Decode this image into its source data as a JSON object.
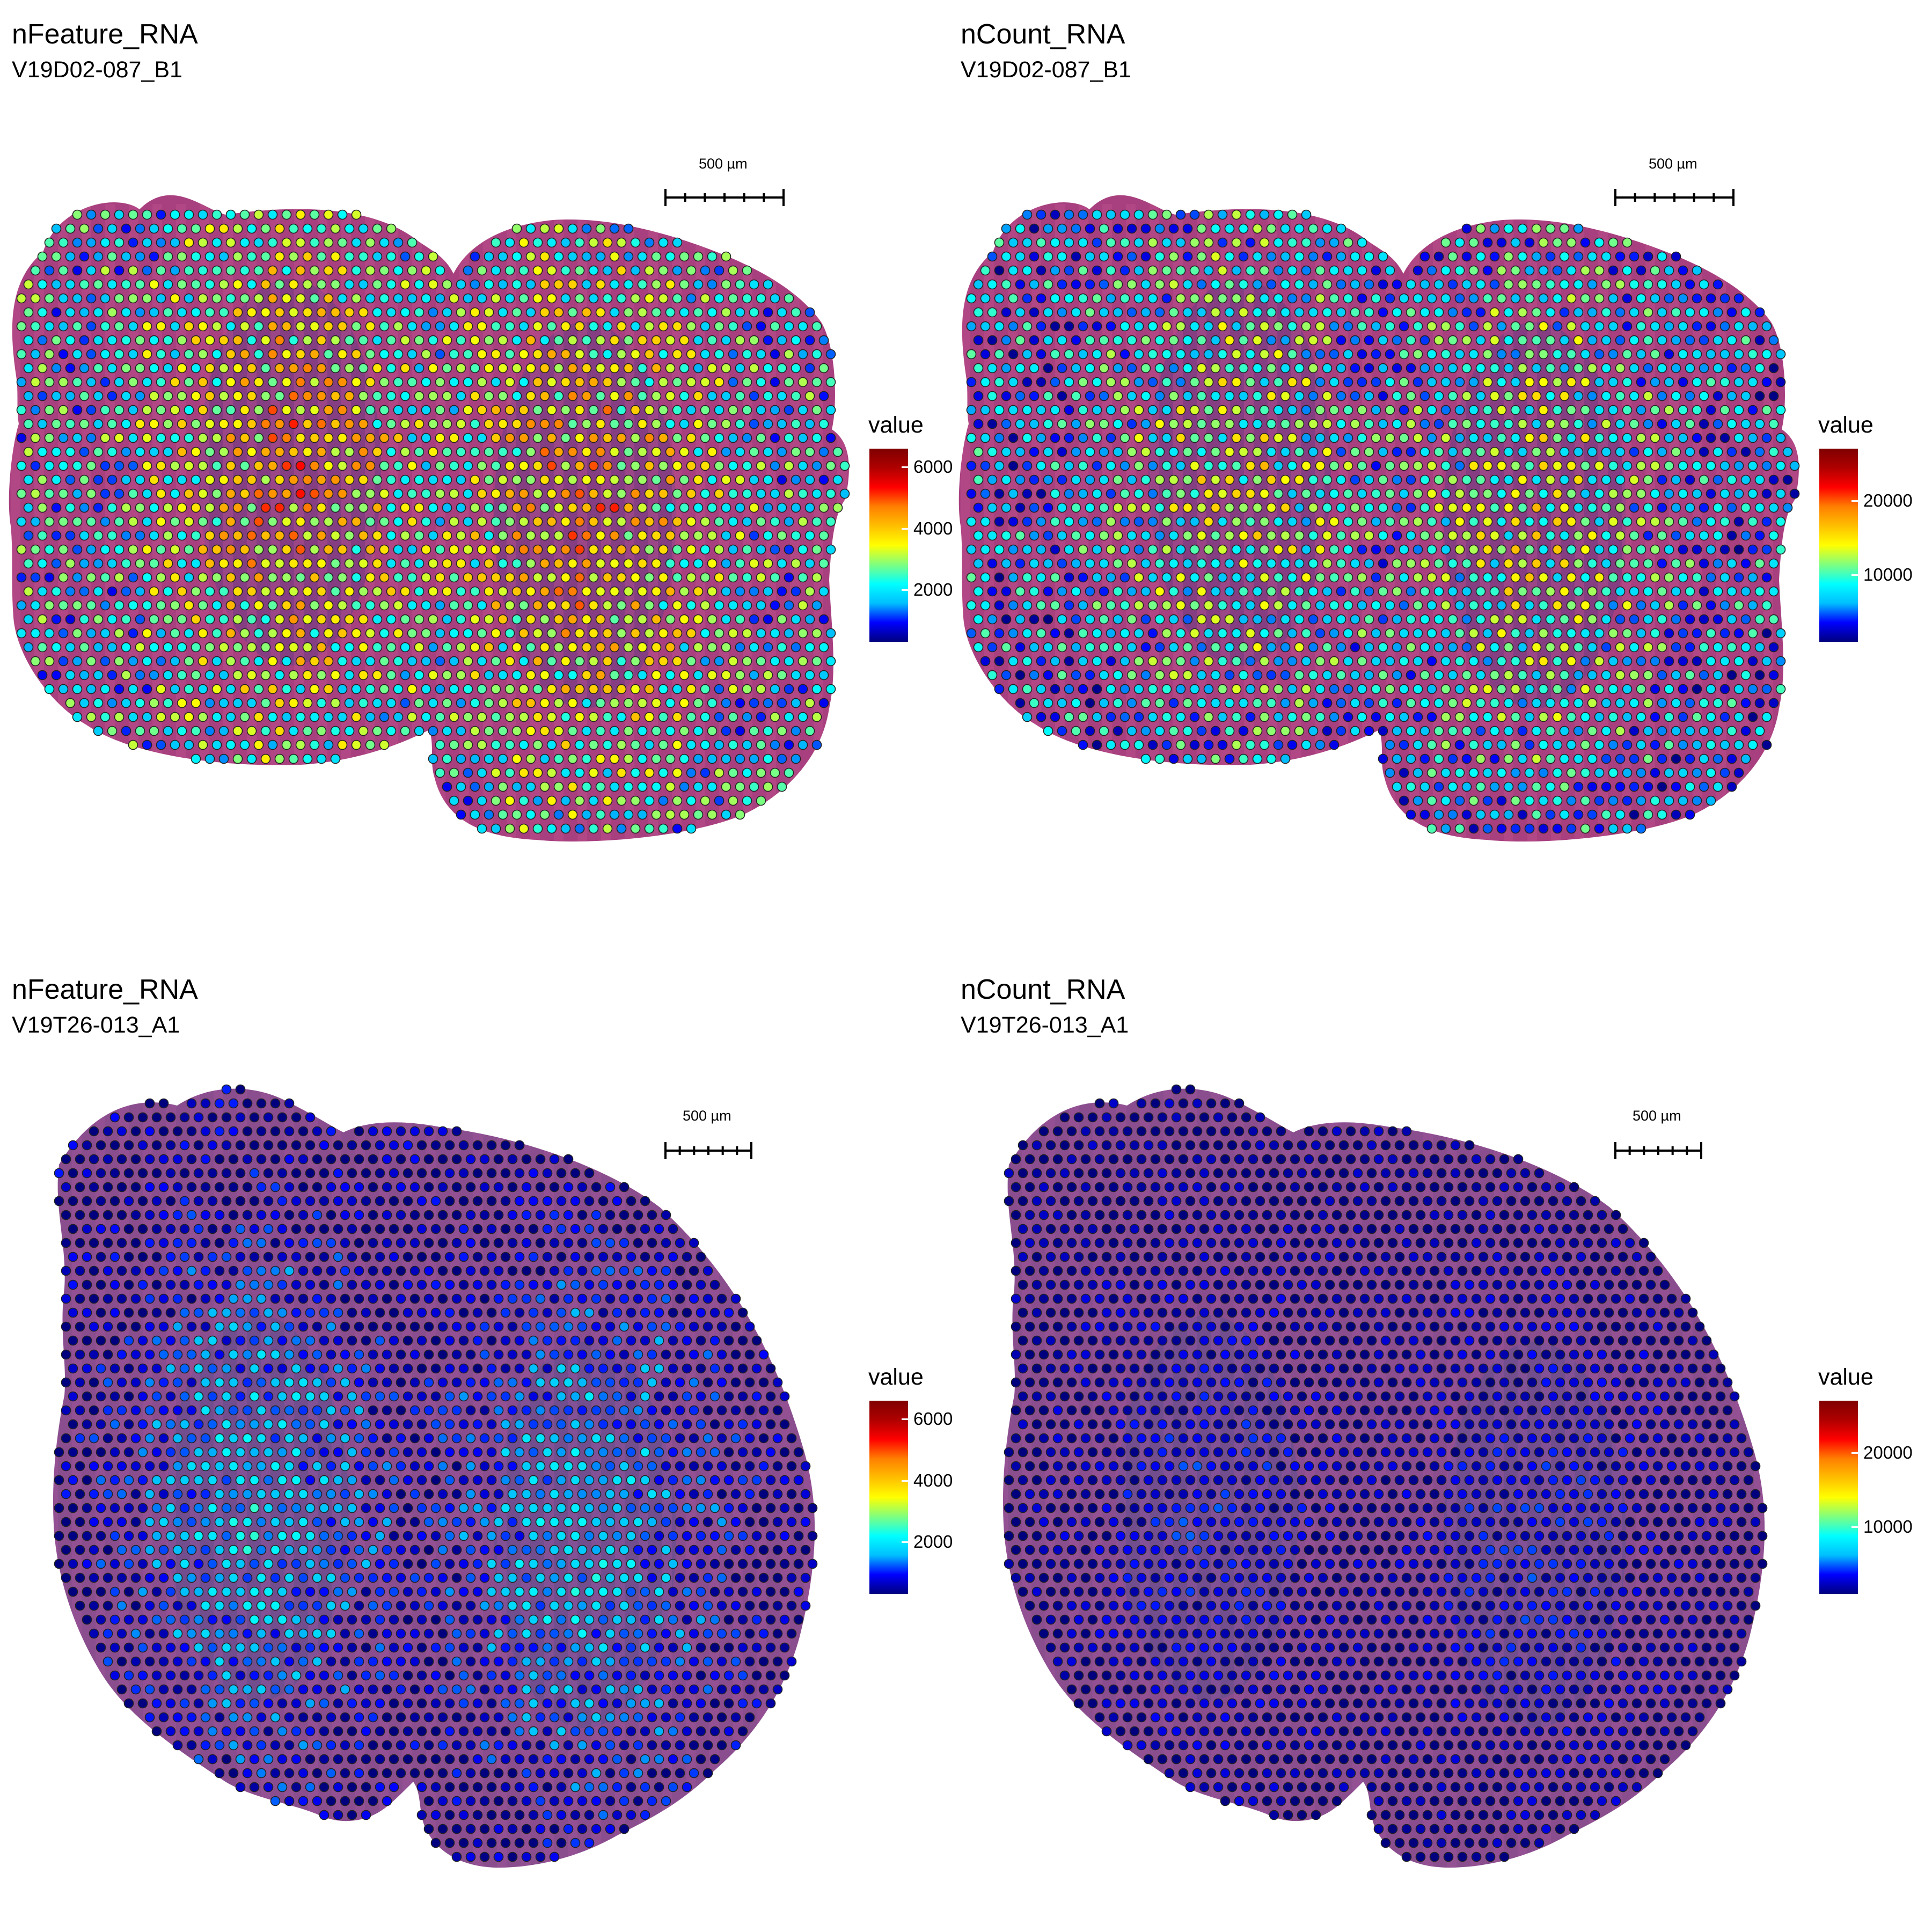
{
  "colorscale": {
    "stops": [
      "#00007f",
      "#0000ff",
      "#00bfff",
      "#00ffff",
      "#7fff7f",
      "#ffff00",
      "#ffbf00",
      "#ff7f00",
      "#ff0000",
      "#b00000",
      "#7f0000"
    ]
  },
  "chart_data": [
    {
      "type": "scatter",
      "title": "nFeature_RNA",
      "subtitle": "V19D02-087_B1",
      "scalebar_label": "500 µm",
      "legend_title": "value",
      "legend_ticks": [
        {
          "value": 2000,
          "label": "2000"
        },
        {
          "value": 4000,
          "label": "4000"
        },
        {
          "value": 6000,
          "label": "6000"
        }
      ],
      "range": [
        300,
        6600
      ],
      "pattern": {
        "center": 4400,
        "spread": 1700,
        "edge_drop": 2400
      }
    },
    {
      "type": "scatter",
      "title": "nCount_RNA",
      "subtitle": "V19D02-087_B1",
      "scalebar_label": "500 µm",
      "legend_title": "value",
      "legend_ticks": [
        {
          "value": 10000,
          "label": "10000"
        },
        {
          "value": 20000,
          "label": "20000"
        }
      ],
      "range": [
        1000,
        27000
      ],
      "pattern": {
        "center": 13000,
        "spread": 7000,
        "edge_drop": 7000
      }
    },
    {
      "type": "scatter",
      "title": "nFeature_RNA",
      "subtitle": "V19T26-013_A1",
      "scalebar_label": "500 µm",
      "legend_title": "value",
      "legend_ticks": [
        {
          "value": 2000,
          "label": "2000"
        },
        {
          "value": 4000,
          "label": "4000"
        },
        {
          "value": 6000,
          "label": "6000"
        }
      ],
      "range": [
        300,
        6600
      ],
      "pattern": {
        "center": 2000,
        "spread": 900,
        "edge_drop": 1600
      }
    },
    {
      "type": "scatter",
      "title": "nCount_RNA",
      "subtitle": "V19T26-013_A1",
      "scalebar_label": "500 µm",
      "legend_title": "value",
      "legend_ticks": [
        {
          "value": 10000,
          "label": "10000"
        },
        {
          "value": 20000,
          "label": "20000"
        }
      ],
      "range": [
        1000,
        27000
      ],
      "pattern": {
        "center": 3500,
        "spread": 2500,
        "edge_drop": 2500
      }
    }
  ]
}
